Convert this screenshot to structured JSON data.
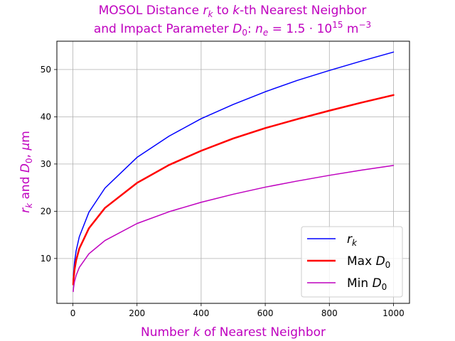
{
  "chart_data": {
    "type": "line",
    "title_line1": "MOSOL Distance r_k to k-th Nearest Neighbor",
    "title_line2": "and Impact Parameter D_0: n_e = 1.5 · 10^15 m^-3",
    "xlabel": "Number k of Nearest Neighbor",
    "ylabel": "r_k and D_0, μm",
    "xlim": [
      -50,
      1050
    ],
    "ylim": [
      0.5,
      56
    ],
    "xticks": [
      0,
      200,
      400,
      600,
      800,
      1000
    ],
    "yticks": [
      10,
      20,
      30,
      40,
      50
    ],
    "grid": true,
    "legend_position": "lower-right",
    "colors": {
      "title": "#bf00bf",
      "axis_label": "#bf00bf"
    },
    "series": [
      {
        "name": "r_k",
        "color": "#0000ff",
        "line_width": 1.5,
        "x": [
          1,
          2,
          5,
          10,
          20,
          50,
          100,
          200,
          300,
          400,
          500,
          600,
          700,
          800,
          900,
          1000
        ],
        "y": [
          5.4,
          6.8,
          9.2,
          11.6,
          14.6,
          19.8,
          24.9,
          31.4,
          35.9,
          39.6,
          42.6,
          45.3,
          47.7,
          49.8,
          51.8,
          53.7
        ]
      },
      {
        "name": "Max D_0",
        "color": "#ff0000",
        "line_width": 2.5,
        "x": [
          1,
          2,
          5,
          10,
          20,
          50,
          100,
          200,
          300,
          400,
          500,
          600,
          700,
          800,
          900,
          1000
        ],
        "y": [
          4.5,
          5.6,
          7.6,
          9.6,
          12.1,
          16.4,
          20.7,
          26.0,
          29.8,
          32.8,
          35.4,
          37.6,
          39.5,
          41.3,
          43.0,
          44.6
        ]
      },
      {
        "name": "Min D_0",
        "color": "#bf00bf",
        "line_width": 1.5,
        "x": [
          1,
          2,
          5,
          10,
          20,
          50,
          100,
          200,
          300,
          400,
          500,
          600,
          700,
          800,
          900,
          1000
        ],
        "y": [
          3.0,
          3.8,
          5.1,
          6.4,
          8.1,
          11.0,
          13.8,
          17.4,
          19.9,
          21.9,
          23.6,
          25.1,
          26.4,
          27.6,
          28.7,
          29.7
        ]
      }
    ]
  }
}
